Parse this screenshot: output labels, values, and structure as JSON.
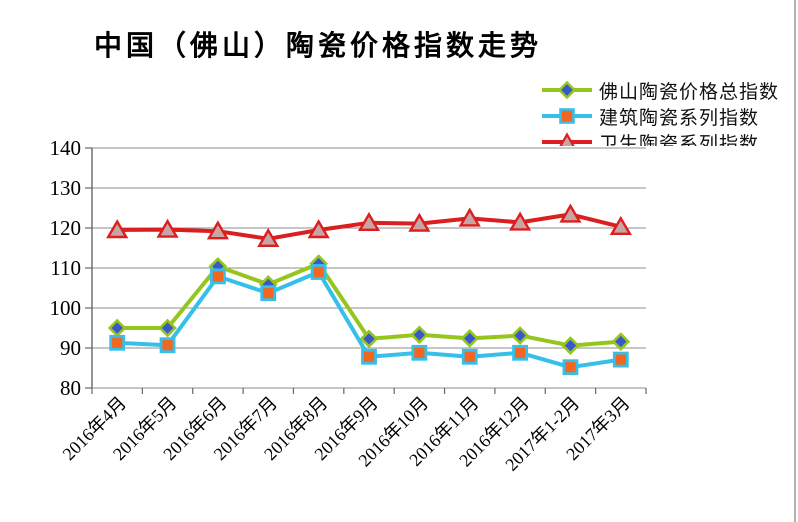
{
  "title": "中国（佛山）陶瓷价格指数走势",
  "chart_data": {
    "type": "line",
    "title": "中国（佛山）陶瓷价格指数走势",
    "categories": [
      "2016年4月",
      "2016年5月",
      "2016年6月",
      "2016年7月",
      "2016年8月",
      "2016年9月",
      "2016年10月",
      "2016年11月",
      "2016年12月",
      "2017年1-2月",
      "2017年3月"
    ],
    "series": [
      {
        "name": "佛山陶瓷价格总指数",
        "values": [
          95.0,
          95.0,
          110.4,
          105.9,
          111.1,
          92.3,
          93.3,
          92.4,
          93.1,
          90.6,
          91.6
        ],
        "line_color": "#96C51E",
        "marker": "diamond",
        "marker_color": "#3959C8"
      },
      {
        "name": "建筑陶瓷系列指数",
        "values": [
          91.3,
          90.7,
          107.9,
          103.7,
          109.0,
          87.8,
          88.8,
          87.8,
          88.8,
          85.2,
          87.1
        ],
        "line_color": "#35BFE9",
        "marker": "square",
        "marker_color": "#F4661F"
      },
      {
        "name": "卫生陶瓷系列指数",
        "values": [
          119.5,
          119.6,
          119.2,
          117.3,
          119.5,
          121.3,
          121.1,
          122.4,
          121.4,
          123.4,
          120.3
        ],
        "line_color": "#DC1E1E",
        "marker": "triangle",
        "marker_color": "#C8A4A4"
      }
    ],
    "ylim": [
      80,
      140
    ],
    "yticks": [
      80,
      90,
      100,
      110,
      120,
      130,
      140
    ],
    "grid": true,
    "legend_position": "top-right",
    "grid_color": "#8E8E8E",
    "axis_color": "#666666",
    "text_color": "#000000"
  }
}
